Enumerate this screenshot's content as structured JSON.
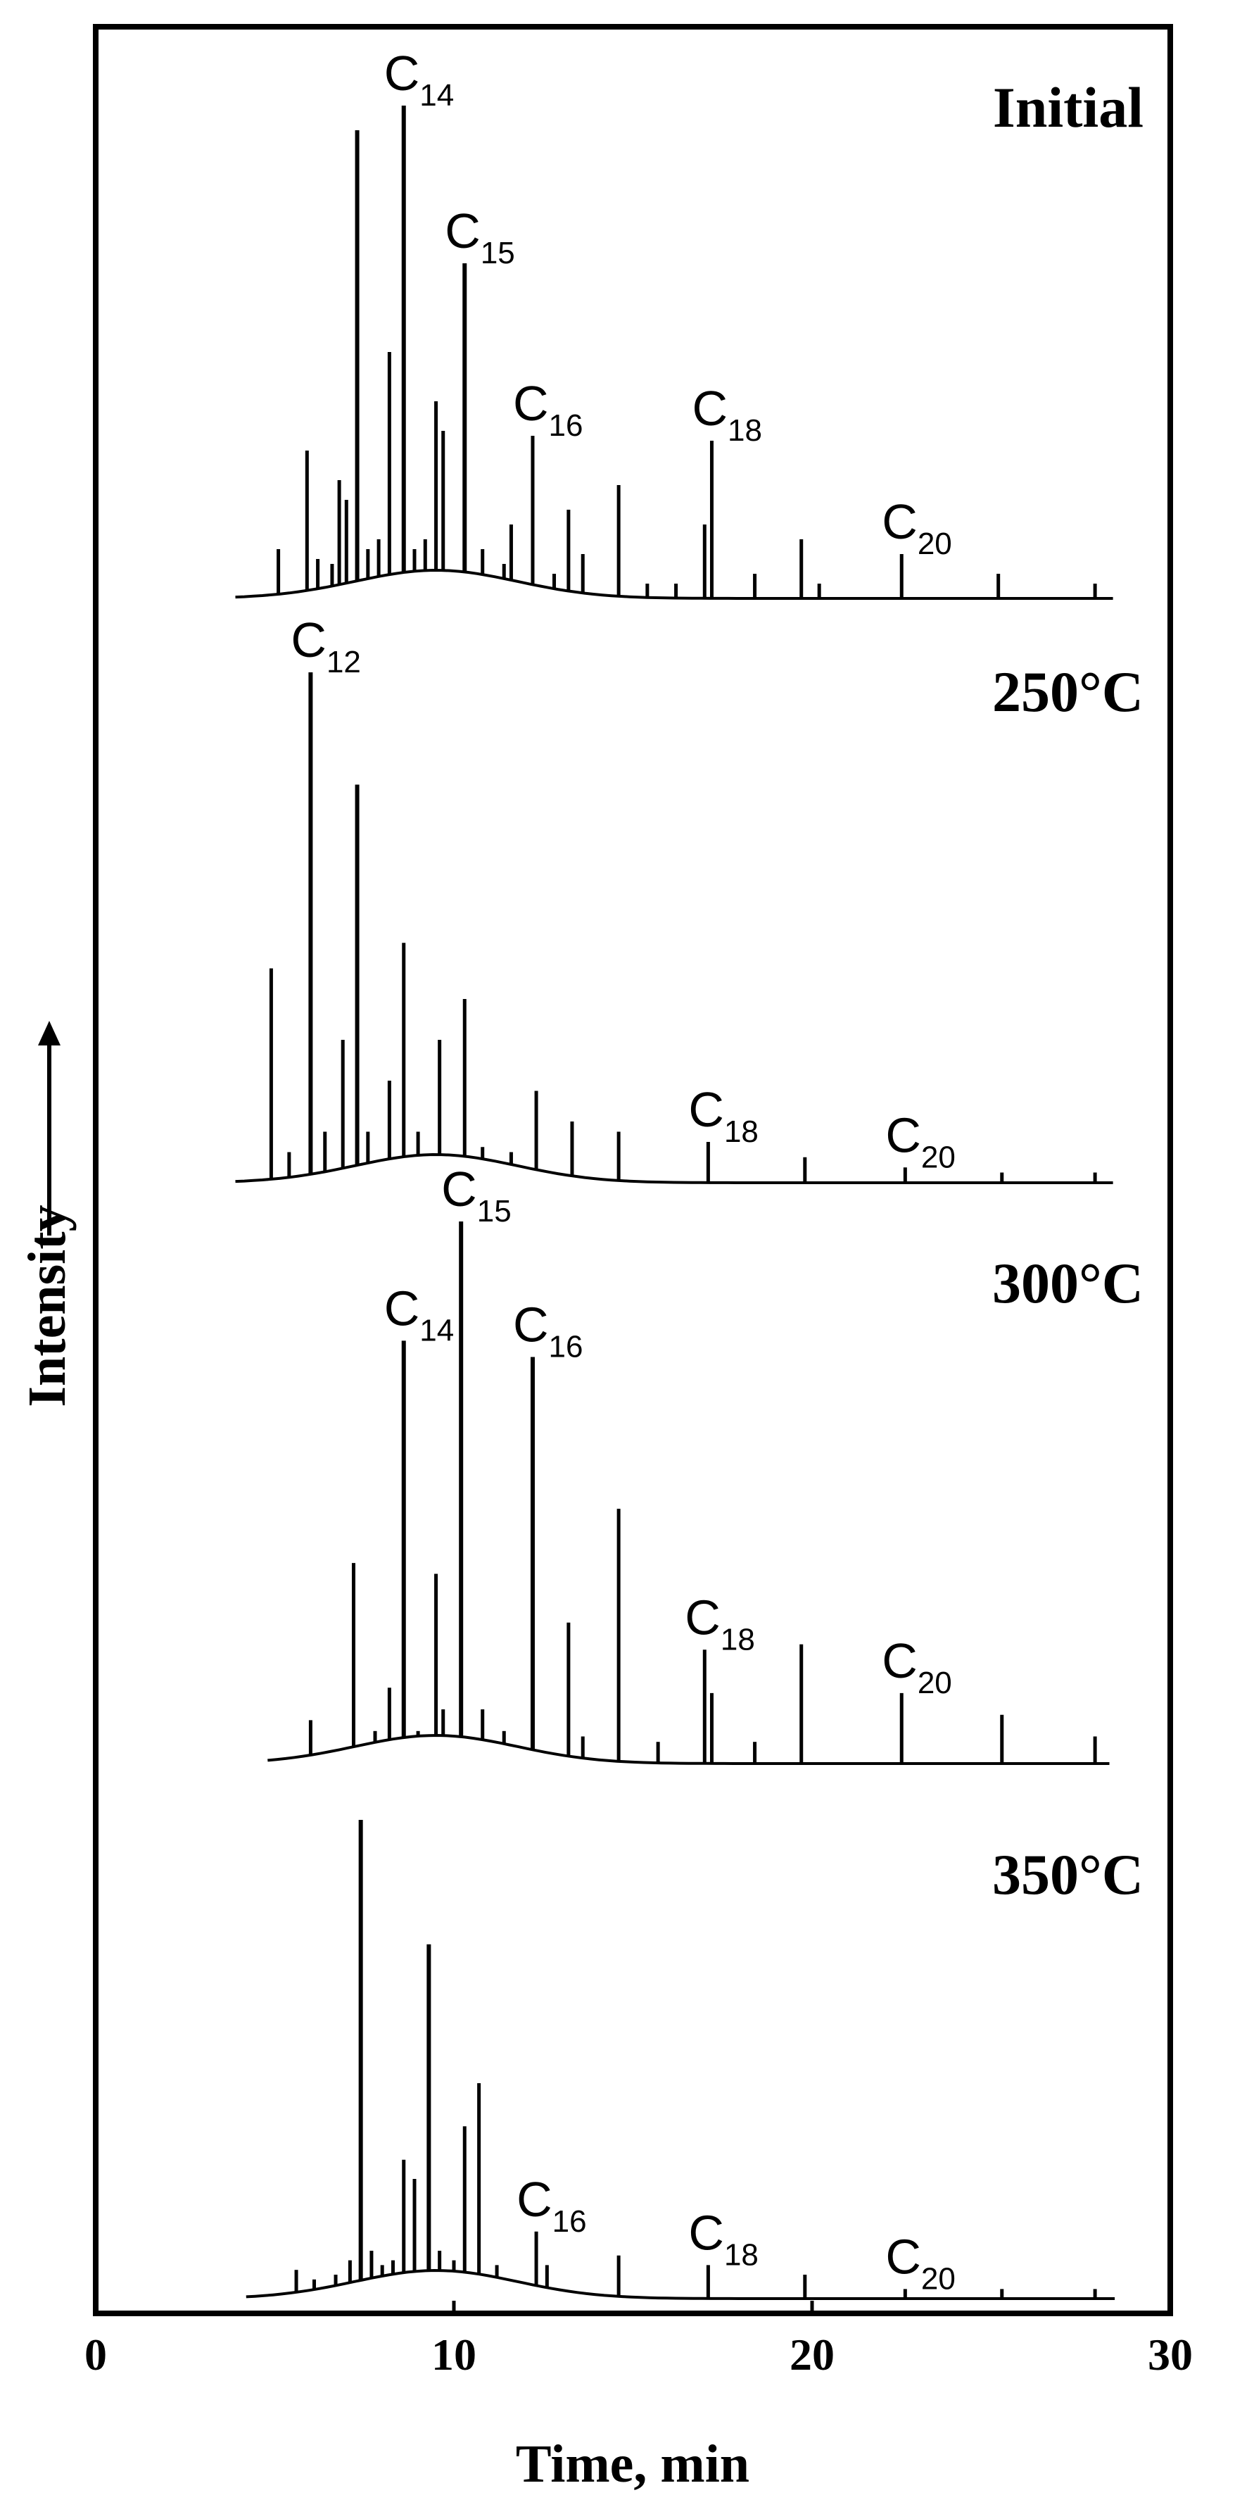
{
  "chart_data": {
    "type": "line",
    "title": "",
    "xlabel": "Time, min",
    "ylabel": "Intensity",
    "xlim": [
      0,
      30
    ],
    "x_ticks": [
      "0",
      "10",
      "20",
      "30"
    ],
    "grid": false,
    "panels": [
      {
        "label": "Initial",
        "peaks": [
          {
            "t": 5.1,
            "h": 0.1
          },
          {
            "t": 5.9,
            "h": 0.3
          },
          {
            "t": 6.2,
            "h": 0.08
          },
          {
            "t": 6.6,
            "h": 0.07
          },
          {
            "t": 6.8,
            "h": 0.24
          },
          {
            "t": 7.0,
            "h": 0.2
          },
          {
            "t": 7.3,
            "h": 0.95
          },
          {
            "t": 7.6,
            "h": 0.1
          },
          {
            "t": 7.9,
            "h": 0.12
          },
          {
            "t": 8.2,
            "h": 0.5
          },
          {
            "t": 8.6,
            "h": 1.0
          },
          {
            "t": 8.9,
            "h": 0.1
          },
          {
            "t": 9.2,
            "h": 0.12
          },
          {
            "t": 9.5,
            "h": 0.4
          },
          {
            "t": 9.7,
            "h": 0.34
          },
          {
            "t": 10.3,
            "h": 0.68
          },
          {
            "t": 10.8,
            "h": 0.1
          },
          {
            "t": 11.4,
            "h": 0.07
          },
          {
            "t": 11.6,
            "h": 0.15
          },
          {
            "t": 12.2,
            "h": 0.33
          },
          {
            "t": 12.8,
            "h": 0.05
          },
          {
            "t": 13.2,
            "h": 0.18
          },
          {
            "t": 13.6,
            "h": 0.09
          },
          {
            "t": 14.6,
            "h": 0.23
          },
          {
            "t": 15.4,
            "h": 0.03
          },
          {
            "t": 16.2,
            "h": 0.03
          },
          {
            "t": 17.0,
            "h": 0.15
          },
          {
            "t": 17.2,
            "h": 0.32
          },
          {
            "t": 18.4,
            "h": 0.05
          },
          {
            "t": 19.7,
            "h": 0.12
          },
          {
            "t": 20.2,
            "h": 0.03
          },
          {
            "t": 22.5,
            "h": 0.09
          },
          {
            "t": 25.2,
            "h": 0.05
          },
          {
            "t": 27.9,
            "h": 0.03
          }
        ],
        "annotations": [
          {
            "name": "C",
            "sub": "14",
            "t": 8.6
          },
          {
            "name": "C",
            "sub": "15",
            "t": 10.3
          },
          {
            "name": "C",
            "sub": "16",
            "t": 12.2
          },
          {
            "name": "C",
            "sub": "18",
            "t": 17.2
          },
          {
            "name": "C",
            "sub": "20",
            "t": 22.5
          }
        ]
      },
      {
        "label": "250°C",
        "peaks": [
          {
            "t": 4.9,
            "h": 0.42
          },
          {
            "t": 5.4,
            "h": 0.06
          },
          {
            "t": 6.0,
            "h": 1.0
          },
          {
            "t": 6.4,
            "h": 0.1
          },
          {
            "t": 6.9,
            "h": 0.28
          },
          {
            "t": 7.3,
            "h": 0.78
          },
          {
            "t": 7.6,
            "h": 0.1
          },
          {
            "t": 8.2,
            "h": 0.2
          },
          {
            "t": 8.6,
            "h": 0.47
          },
          {
            "t": 9.0,
            "h": 0.1
          },
          {
            "t": 9.6,
            "h": 0.28
          },
          {
            "t": 10.3,
            "h": 0.36
          },
          {
            "t": 10.8,
            "h": 0.07
          },
          {
            "t": 11.6,
            "h": 0.06
          },
          {
            "t": 12.3,
            "h": 0.18
          },
          {
            "t": 13.3,
            "h": 0.12
          },
          {
            "t": 14.6,
            "h": 0.1
          },
          {
            "t": 17.1,
            "h": 0.08
          },
          {
            "t": 19.8,
            "h": 0.05
          },
          {
            "t": 22.6,
            "h": 0.03
          },
          {
            "t": 25.3,
            "h": 0.02
          },
          {
            "t": 27.9,
            "h": 0.02
          }
        ],
        "annotations": [
          {
            "name": "C",
            "sub": "12",
            "t": 6.0
          },
          {
            "name": "C",
            "sub": "18",
            "t": 17.1
          },
          {
            "name": "C",
            "sub": "20",
            "t": 22.6
          }
        ]
      },
      {
        "label": "300°C",
        "peaks": [
          {
            "t": 6.0,
            "h": 0.08
          },
          {
            "t": 7.2,
            "h": 0.37
          },
          {
            "t": 7.8,
            "h": 0.06
          },
          {
            "t": 8.2,
            "h": 0.14
          },
          {
            "t": 8.6,
            "h": 0.78
          },
          {
            "t": 9.0,
            "h": 0.06
          },
          {
            "t": 9.5,
            "h": 0.35
          },
          {
            "t": 9.7,
            "h": 0.1
          },
          {
            "t": 10.2,
            "h": 1.0
          },
          {
            "t": 10.8,
            "h": 0.1
          },
          {
            "t": 11.4,
            "h": 0.06
          },
          {
            "t": 12.2,
            "h": 0.75
          },
          {
            "t": 13.2,
            "h": 0.26
          },
          {
            "t": 13.6,
            "h": 0.05
          },
          {
            "t": 14.6,
            "h": 0.47
          },
          {
            "t": 15.7,
            "h": 0.04
          },
          {
            "t": 17.0,
            "h": 0.21
          },
          {
            "t": 17.2,
            "h": 0.13
          },
          {
            "t": 18.4,
            "h": 0.04
          },
          {
            "t": 19.7,
            "h": 0.22
          },
          {
            "t": 22.5,
            "h": 0.13
          },
          {
            "t": 25.3,
            "h": 0.09
          },
          {
            "t": 27.9,
            "h": 0.05
          }
        ],
        "annotations": [
          {
            "name": "C",
            "sub": "14",
            "t": 8.6
          },
          {
            "name": "C",
            "sub": "15",
            "t": 10.2
          },
          {
            "name": "C",
            "sub": "16",
            "t": 12.2
          },
          {
            "name": "C",
            "sub": "18",
            "t": 17.0
          },
          {
            "name": "C",
            "sub": "20",
            "t": 22.5
          }
        ]
      },
      {
        "label": "350°C",
        "peaks": [
          {
            "t": 5.6,
            "h": 0.06
          },
          {
            "t": 6.1,
            "h": 0.04
          },
          {
            "t": 6.7,
            "h": 0.05
          },
          {
            "t": 7.1,
            "h": 0.08
          },
          {
            "t": 7.4,
            "h": 1.0
          },
          {
            "t": 7.7,
            "h": 0.1
          },
          {
            "t": 8.0,
            "h": 0.07
          },
          {
            "t": 8.3,
            "h": 0.08
          },
          {
            "t": 8.6,
            "h": 0.29
          },
          {
            "t": 8.9,
            "h": 0.25
          },
          {
            "t": 9.3,
            "h": 0.74
          },
          {
            "t": 9.6,
            "h": 0.1
          },
          {
            "t": 10.0,
            "h": 0.08
          },
          {
            "t": 10.3,
            "h": 0.36
          },
          {
            "t": 10.7,
            "h": 0.45
          },
          {
            "t": 11.2,
            "h": 0.07
          },
          {
            "t": 12.3,
            "h": 0.14
          },
          {
            "t": 12.6,
            "h": 0.07
          },
          {
            "t": 14.6,
            "h": 0.09
          },
          {
            "t": 17.1,
            "h": 0.07
          },
          {
            "t": 19.8,
            "h": 0.05
          },
          {
            "t": 22.6,
            "h": 0.02
          },
          {
            "t": 25.3,
            "h": 0.02
          },
          {
            "t": 27.9,
            "h": 0.02
          }
        ],
        "annotations": [
          {
            "name": "C",
            "sub": "16",
            "t": 12.3
          },
          {
            "name": "C",
            "sub": "18",
            "t": 17.1
          },
          {
            "name": "C",
            "sub": "20",
            "t": 22.6
          }
        ]
      }
    ]
  },
  "colors": {
    "axis": "#000000",
    "trace": "#000000",
    "background": "#ffffff"
  }
}
